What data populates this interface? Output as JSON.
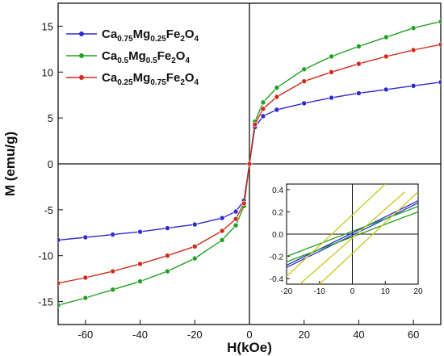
{
  "chart_data": [
    {
      "type": "line",
      "xlabel": "H(kOe)",
      "ylabel": "M (emu/g)",
      "xlim": [
        -70,
        70
      ],
      "ylim": [
        -17.5,
        17.5
      ],
      "xticks": [
        -60,
        -40,
        -20,
        0,
        20,
        40,
        60
      ],
      "yticks": [
        -15,
        -10,
        -5,
        0,
        5,
        10,
        15
      ],
      "grid": false,
      "legend_position": "top-left",
      "series": [
        {
          "name": "Ca0.75Mg0.25Fe2O4",
          "label_main": "Ca",
          "label_parts": [
            [
              "0.75",
              "Mg"
            ],
            [
              "0.25",
              "Fe"
            ],
            [
              "2",
              "O"
            ],
            [
              "4",
              ""
            ]
          ],
          "color": "#2b2bd0",
          "x": [
            -70,
            -60,
            -50,
            -40,
            -30,
            -20,
            -10,
            -5,
            -2,
            0,
            2,
            5,
            10,
            20,
            30,
            40,
            50,
            60,
            70
          ],
          "y": [
            -8.3,
            -8.0,
            -7.7,
            -7.4,
            -7.0,
            -6.6,
            -5.9,
            -5.2,
            -4.0,
            0,
            4.0,
            5.2,
            5.9,
            6.6,
            7.2,
            7.7,
            8.1,
            8.5,
            8.9
          ]
        },
        {
          "name": "Ca0.5Mg0.5Fe2O4",
          "label_main": "Ca",
          "label_parts": [
            [
              "0.5",
              "Mg"
            ],
            [
              "0.5",
              "Fe"
            ],
            [
              "2",
              "O"
            ],
            [
              "4",
              ""
            ]
          ],
          "color": "#1fa01f",
          "x": [
            -70,
            -60,
            -50,
            -40,
            -30,
            -20,
            -10,
            -5,
            -2,
            0,
            2,
            5,
            10,
            20,
            30,
            40,
            50,
            60,
            70
          ],
          "y": [
            -15.4,
            -14.6,
            -13.7,
            -12.8,
            -11.7,
            -10.3,
            -8.3,
            -6.7,
            -4.6,
            0,
            4.6,
            6.7,
            8.3,
            10.3,
            11.7,
            12.8,
            13.8,
            14.8,
            15.5
          ]
        },
        {
          "name": "Ca0.25Mg0.75Fe2O4",
          "label_main": "Ca",
          "label_parts": [
            [
              "0.25",
              "Mg"
            ],
            [
              "0.75",
              "Fe"
            ],
            [
              "2",
              "O"
            ],
            [
              "4",
              ""
            ]
          ],
          "color": "#d02a1a",
          "x": [
            -70,
            -60,
            -50,
            -40,
            -30,
            -20,
            -10,
            -5,
            -2,
            0,
            2,
            5,
            10,
            20,
            30,
            40,
            50,
            60,
            70
          ],
          "y": [
            -13.0,
            -12.4,
            -11.7,
            -10.9,
            -10.0,
            -9.0,
            -7.3,
            -6.0,
            -4.3,
            0,
            4.3,
            6.0,
            7.3,
            9.0,
            10.0,
            10.9,
            11.7,
            12.4,
            13.0
          ]
        }
      ]
    },
    {
      "type": "line",
      "title": "",
      "xlim": [
        -20,
        20
      ],
      "ylim": [
        -0.45,
        0.45
      ],
      "xticks": [
        -20,
        -10,
        0,
        10,
        20
      ],
      "yticks": [
        -0.4,
        -0.2,
        0.0,
        0.2,
        0.4
      ],
      "ytick_labels": [
        "-0.4",
        "-0.2",
        "0.0",
        "0.2",
        "0.4"
      ],
      "grid": false,
      "series": [
        {
          "color": "#2b2bd0",
          "x": [
            -20,
            20
          ],
          "y": [
            -0.28,
            0.3
          ]
        },
        {
          "color": "#2b2bd0",
          "x": [
            -20,
            20
          ],
          "y": [
            -0.3,
            0.28
          ]
        },
        {
          "color": "#1fa01f",
          "x": [
            -20,
            20
          ],
          "y": [
            -0.2,
            0.25
          ]
        },
        {
          "color": "#1fa01f",
          "x": [
            -20,
            20
          ],
          "y": [
            -0.25,
            0.2
          ]
        },
        {
          "color": "#c8c81e",
          "x": [
            -16,
            16
          ],
          "y": [
            -0.45,
            0.38
          ]
        },
        {
          "color": "#c8c81e",
          "x": [
            -10,
            20
          ],
          "y": [
            -0.45,
            0.38
          ]
        },
        {
          "color": "#c8c81e",
          "x": [
            -20,
            10
          ],
          "y": [
            -0.38,
            0.45
          ]
        }
      ]
    }
  ],
  "legend_labels": [
    "Ca0.75Mg0.25Fe2O4",
    "Ca0.5Mg0.5Fe2O4",
    "Ca0.25Mg0.75Fe2O4"
  ]
}
